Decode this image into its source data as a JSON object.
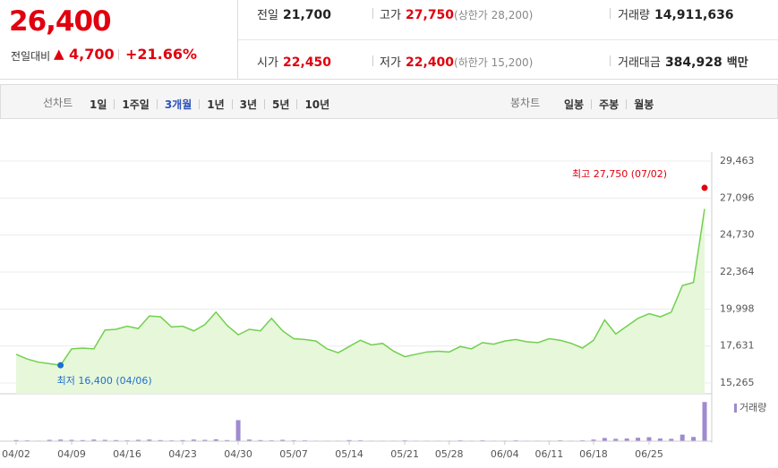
{
  "summary": {
    "price": "26,400",
    "change_label": "전일대비",
    "change": "4,700",
    "change_rate": "+21.66%",
    "items": [
      {
        "label": "전일",
        "value": "21,700"
      },
      {
        "label": "고가",
        "value": "27,750",
        "note": "(상한가 28,200)"
      },
      {
        "label": "거래량",
        "value": "14,911,636"
      },
      {
        "label": "시가",
        "value": "22,450"
      },
      {
        "label": "저가",
        "value": "22,400",
        "note": "(하한가 15,200)"
      },
      {
        "label": "거래대금",
        "value": "384,928",
        "unit": "백만"
      }
    ]
  },
  "tabs": {
    "line_label": "선차트",
    "line_periods": [
      "1일",
      "1주일",
      "3개월",
      "1년",
      "3년",
      "5년",
      "10년"
    ],
    "candle_label": "봉차트",
    "candle_periods": [
      "일봉",
      "주봉",
      "월봉"
    ]
  },
  "chart_data": [
    {
      "type": "line",
      "color": "#72d04e",
      "fill": "#e6f7da",
      "categories": [
        "04/02",
        null,
        null,
        null,
        null,
        "04/09",
        null,
        null,
        null,
        null,
        "04/16",
        null,
        null,
        null,
        null,
        "04/23",
        null,
        null,
        null,
        null,
        "04/30",
        null,
        null,
        null,
        null,
        "05/07",
        null,
        null,
        null,
        null,
        "05/14",
        null,
        null,
        null,
        null,
        "05/21",
        null,
        null,
        null,
        "05/28",
        null,
        null,
        null,
        null,
        "06/04",
        null,
        null,
        null,
        "06/11",
        null,
        null,
        null,
        "06/18",
        null,
        null,
        null,
        null,
        "06/25",
        null,
        null,
        null,
        null,
        null
      ],
      "values": [
        17100,
        16800,
        16600,
        16500,
        16400,
        17450,
        17500,
        17450,
        18650,
        18700,
        18900,
        18750,
        19550,
        19500,
        18850,
        18900,
        18600,
        19000,
        19800,
        18950,
        18350,
        18700,
        18600,
        19400,
        18600,
        18100,
        18050,
        17950,
        17450,
        17200,
        17600,
        18000,
        17700,
        17800,
        17300,
        16950,
        17100,
        17250,
        17300,
        17250,
        17600,
        17450,
        17850,
        17750,
        17950,
        18050,
        17900,
        17850,
        18100,
        18000,
        17800,
        17500,
        18000,
        19300,
        18400,
        18900,
        19400,
        19700,
        19500,
        19800,
        21500,
        21700,
        26400
      ],
      "ylim": [
        15265,
        29463
      ],
      "yticks": [
        {
          "value": 15265,
          "label": "15,265"
        },
        {
          "value": 17631,
          "label": "17,631"
        },
        {
          "value": 19998,
          "label": "19,998"
        },
        {
          "value": 22364,
          "label": "22,364"
        },
        {
          "value": 24730,
          "label": "24,730"
        },
        {
          "value": 27096,
          "label": "27,096"
        },
        {
          "value": 29463,
          "label": "29,463"
        }
      ],
      "grid": true,
      "annotations": [
        {
          "text": "최고 27,750 (07/02)",
          "value": 27750,
          "color": "#e0000e"
        },
        {
          "text": "최저 16,400 (04/06)",
          "value": 16400,
          "color": "#1f6fd0"
        }
      ]
    },
    {
      "type": "bar",
      "name": "거래량",
      "color": "#9f8ad0",
      "ylim": [
        0,
        15000000
      ],
      "values": [
        400000,
        300000,
        200000,
        500000,
        600000,
        500000,
        400000,
        600000,
        500000,
        400000,
        300000,
        500000,
        600000,
        400000,
        300000,
        400000,
        600000,
        500000,
        700000,
        400000,
        8000000,
        600000,
        400000,
        300000,
        500000,
        300000,
        300000,
        200000,
        200000,
        200000,
        400000,
        300000,
        200000,
        200000,
        200000,
        300000,
        200000,
        200000,
        200000,
        200000,
        300000,
        200000,
        300000,
        200000,
        200000,
        300000,
        200000,
        200000,
        200000,
        300000,
        200000,
        300000,
        600000,
        1200000,
        900000,
        1000000,
        1300000,
        1500000,
        1000000,
        900000,
        2500000,
        1600000,
        14911636
      ]
    }
  ]
}
